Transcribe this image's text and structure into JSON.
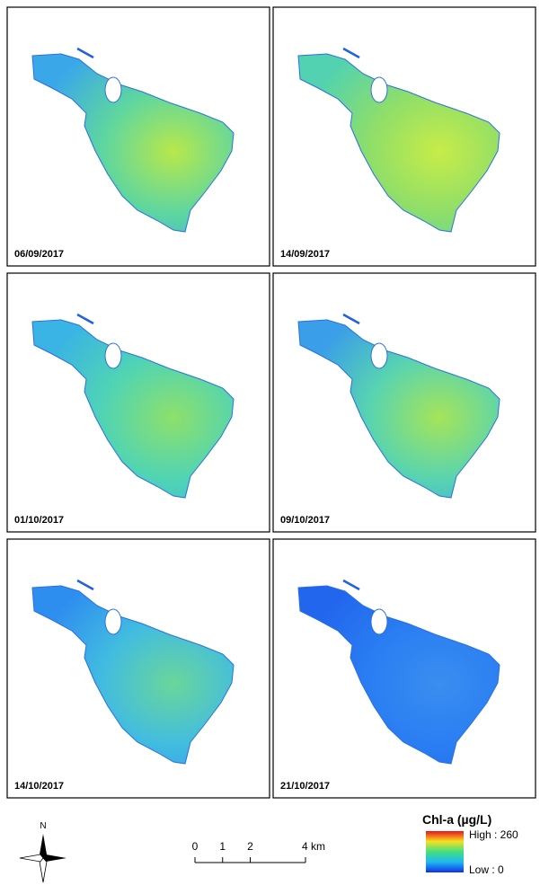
{
  "panels": [
    {
      "date": "06/09/2017",
      "colors": [
        "#b8e84a",
        "#5ed6a0",
        "#3aa8e8"
      ]
    },
    {
      "date": "14/09/2017",
      "colors": [
        "#c8ec48",
        "#8ede6a",
        "#52d2b0"
      ]
    },
    {
      "date": "01/10/2017",
      "colors": [
        "#8ee06a",
        "#50d4b4",
        "#3ab4e4"
      ]
    },
    {
      "date": "09/10/2017",
      "colors": [
        "#a6e458",
        "#58d4b0",
        "#3a9ee8"
      ]
    },
    {
      "date": "14/10/2017",
      "colors": [
        "#6ad69a",
        "#42bce0",
        "#2e8ef0"
      ]
    },
    {
      "date": "21/10/2017",
      "colors": [
        "#3a8ef0",
        "#2a7ef2",
        "#2266ee"
      ]
    }
  ],
  "north": "N",
  "scale_bar": {
    "ticks": [
      0,
      1,
      2,
      {
        "value": 4,
        "label": "4 km"
      }
    ]
  },
  "legend": {
    "title": "Chl-a (µg/L)",
    "high": "High : 260",
    "low": "Low : 0"
  }
}
